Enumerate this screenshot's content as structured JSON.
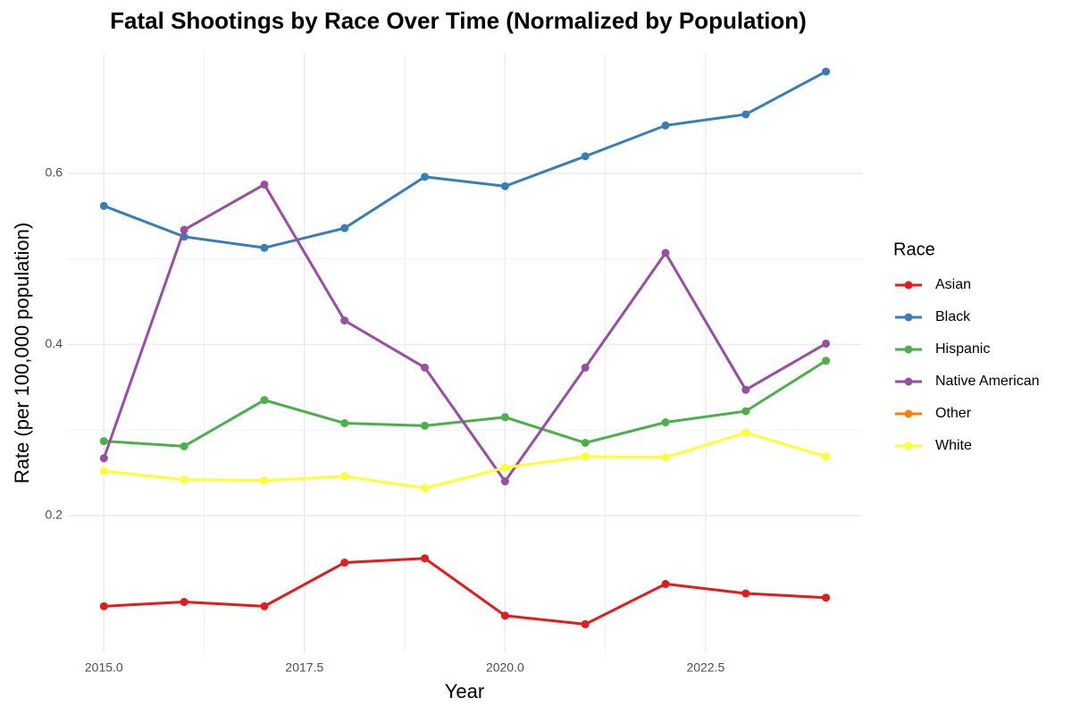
{
  "chart_data": {
    "type": "line",
    "title": "Fatal Shootings by Race Over Time (Normalized by Population)",
    "x_label": "Year",
    "y_label": "Rate (per 100,000 population)",
    "legend_title": "Race",
    "x": [
      2015,
      2016,
      2017,
      2018,
      2019,
      2020,
      2021,
      2022,
      2023,
      2024
    ],
    "series": [
      {
        "name": "Asian",
        "color": "#e41a1c",
        "values": [
          0.094,
          0.099,
          0.094,
          0.145,
          0.15,
          0.083,
          0.073,
          0.12,
          0.109,
          0.104
        ]
      },
      {
        "name": "Black",
        "color": "#377eb8",
        "values": [
          0.562,
          0.526,
          0.513,
          0.536,
          0.596,
          0.585,
          0.62,
          0.656,
          0.669,
          0.719
        ]
      },
      {
        "name": "Hispanic",
        "color": "#4daf4a",
        "values": [
          0.287,
          0.281,
          0.335,
          0.308,
          0.305,
          0.315,
          0.285,
          0.309,
          0.322,
          0.381
        ]
      },
      {
        "name": "Native American",
        "color": "#984ea3",
        "values": [
          0.267,
          0.534,
          0.587,
          0.428,
          0.373,
          0.24,
          0.373,
          0.507,
          0.347,
          0.401
        ]
      },
      {
        "name": "Other",
        "color": "#ff7f00",
        "values": [
          null,
          null,
          null,
          null,
          null,
          null,
          null,
          null,
          null,
          null
        ]
      },
      {
        "name": "White",
        "color": "#ffff33",
        "values": [
          0.252,
          0.242,
          0.241,
          0.246,
          0.232,
          0.256,
          0.269,
          0.268,
          0.297,
          0.269
        ]
      }
    ],
    "xlim": [
      2014.54,
      2024.45
    ],
    "xticks": [
      {
        "value": 2015,
        "label": "2015.0"
      },
      2017.5,
      {
        "value": 2020,
        "label": "2020.0"
      },
      2022.5
    ],
    "ylim": [
      0.04,
      0.74
    ],
    "yticks": [
      0.2,
      0.4,
      0.6
    ],
    "grid": true,
    "legend": "right"
  }
}
